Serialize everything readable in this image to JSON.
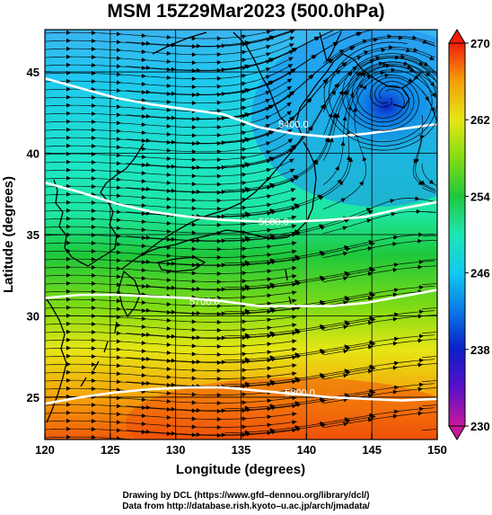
{
  "title": "MSM 15Z29Mar2023 (500.0hPa)",
  "x_axis": {
    "label": "Longitude (degrees)",
    "min": 120,
    "max": 150,
    "ticks": [
      {
        "value": 120,
        "label": "120"
      },
      {
        "value": 125,
        "label": "125"
      },
      {
        "value": 130,
        "label": "130"
      },
      {
        "value": 135,
        "label": "135"
      },
      {
        "value": 140,
        "label": "140"
      },
      {
        "value": 145,
        "label": "145"
      },
      {
        "value": 150,
        "label": "150"
      }
    ]
  },
  "y_axis": {
    "label": "Latitude  (degrees)",
    "min": 22.4,
    "max": 47.6,
    "ticks": [
      {
        "value": 25,
        "label": "25"
      },
      {
        "value": 30,
        "label": "30"
      },
      {
        "value": 35,
        "label": "35"
      },
      {
        "value": 40,
        "label": "40"
      },
      {
        "value": 45,
        "label": "45"
      }
    ]
  },
  "colorbar": {
    "min": 230,
    "max": 270,
    "ticks": [
      {
        "value": 230,
        "label": "230"
      },
      {
        "value": 238,
        "label": "238"
      },
      {
        "value": 246,
        "label": "246"
      },
      {
        "value": 254,
        "label": "254"
      },
      {
        "value": 262,
        "label": "262"
      },
      {
        "value": 270,
        "label": "270"
      }
    ]
  },
  "contours": [
    {
      "label": "5400.0",
      "lat": [
        44.6,
        44.0,
        43.4,
        43.0,
        42.7,
        42.4,
        41.6,
        41.2,
        41.0,
        41.2,
        41.5,
        41.8
      ],
      "label_lon": 139.0,
      "label_lat": 41.8
    },
    {
      "label": "5600.0",
      "lat": [
        38.2,
        37.6,
        36.9,
        36.4,
        36.1,
        35.9,
        35.8,
        35.8,
        35.9,
        36.1,
        36.6,
        37.0
      ],
      "label_lon": 137.5,
      "label_lat": 35.8
    },
    {
      "label": "5700.0",
      "lat": [
        31.1,
        31.3,
        31.3,
        31.2,
        31.1,
        30.9,
        30.6,
        30.6,
        30.6,
        30.8,
        31.2,
        31.6
      ],
      "label_lon": 132.2,
      "label_lat": 30.9
    },
    {
      "label": "5800.0",
      "lat": [
        24.6,
        25.0,
        25.3,
        25.5,
        25.6,
        25.6,
        25.4,
        25.2,
        25.0,
        24.9,
        24.8,
        24.9
      ],
      "label_lon": 139.5,
      "label_lat": 25.3
    }
  ],
  "low_center": {
    "lon": 146.2,
    "lat": 43.4
  },
  "credits": {
    "line1": "Drawing by DCL (https://www.gfd–dennou.org/library/dcl/)",
    "line2": "Data from http://database.rish.kyoto–u.ac.jp/arch/jmadata/"
  },
  "colors": {
    "c230": "#c8189a",
    "c234": "#5a10c8",
    "c238": "#0a1ec8",
    "c242": "#0a78e6",
    "c246": "#12c8f0",
    "c250": "#1ee6b4",
    "c254": "#1ec83c",
    "c258": "#82dc14",
    "c262": "#e6e614",
    "c266": "#f5a00a",
    "c270": "#f01e0a"
  }
}
